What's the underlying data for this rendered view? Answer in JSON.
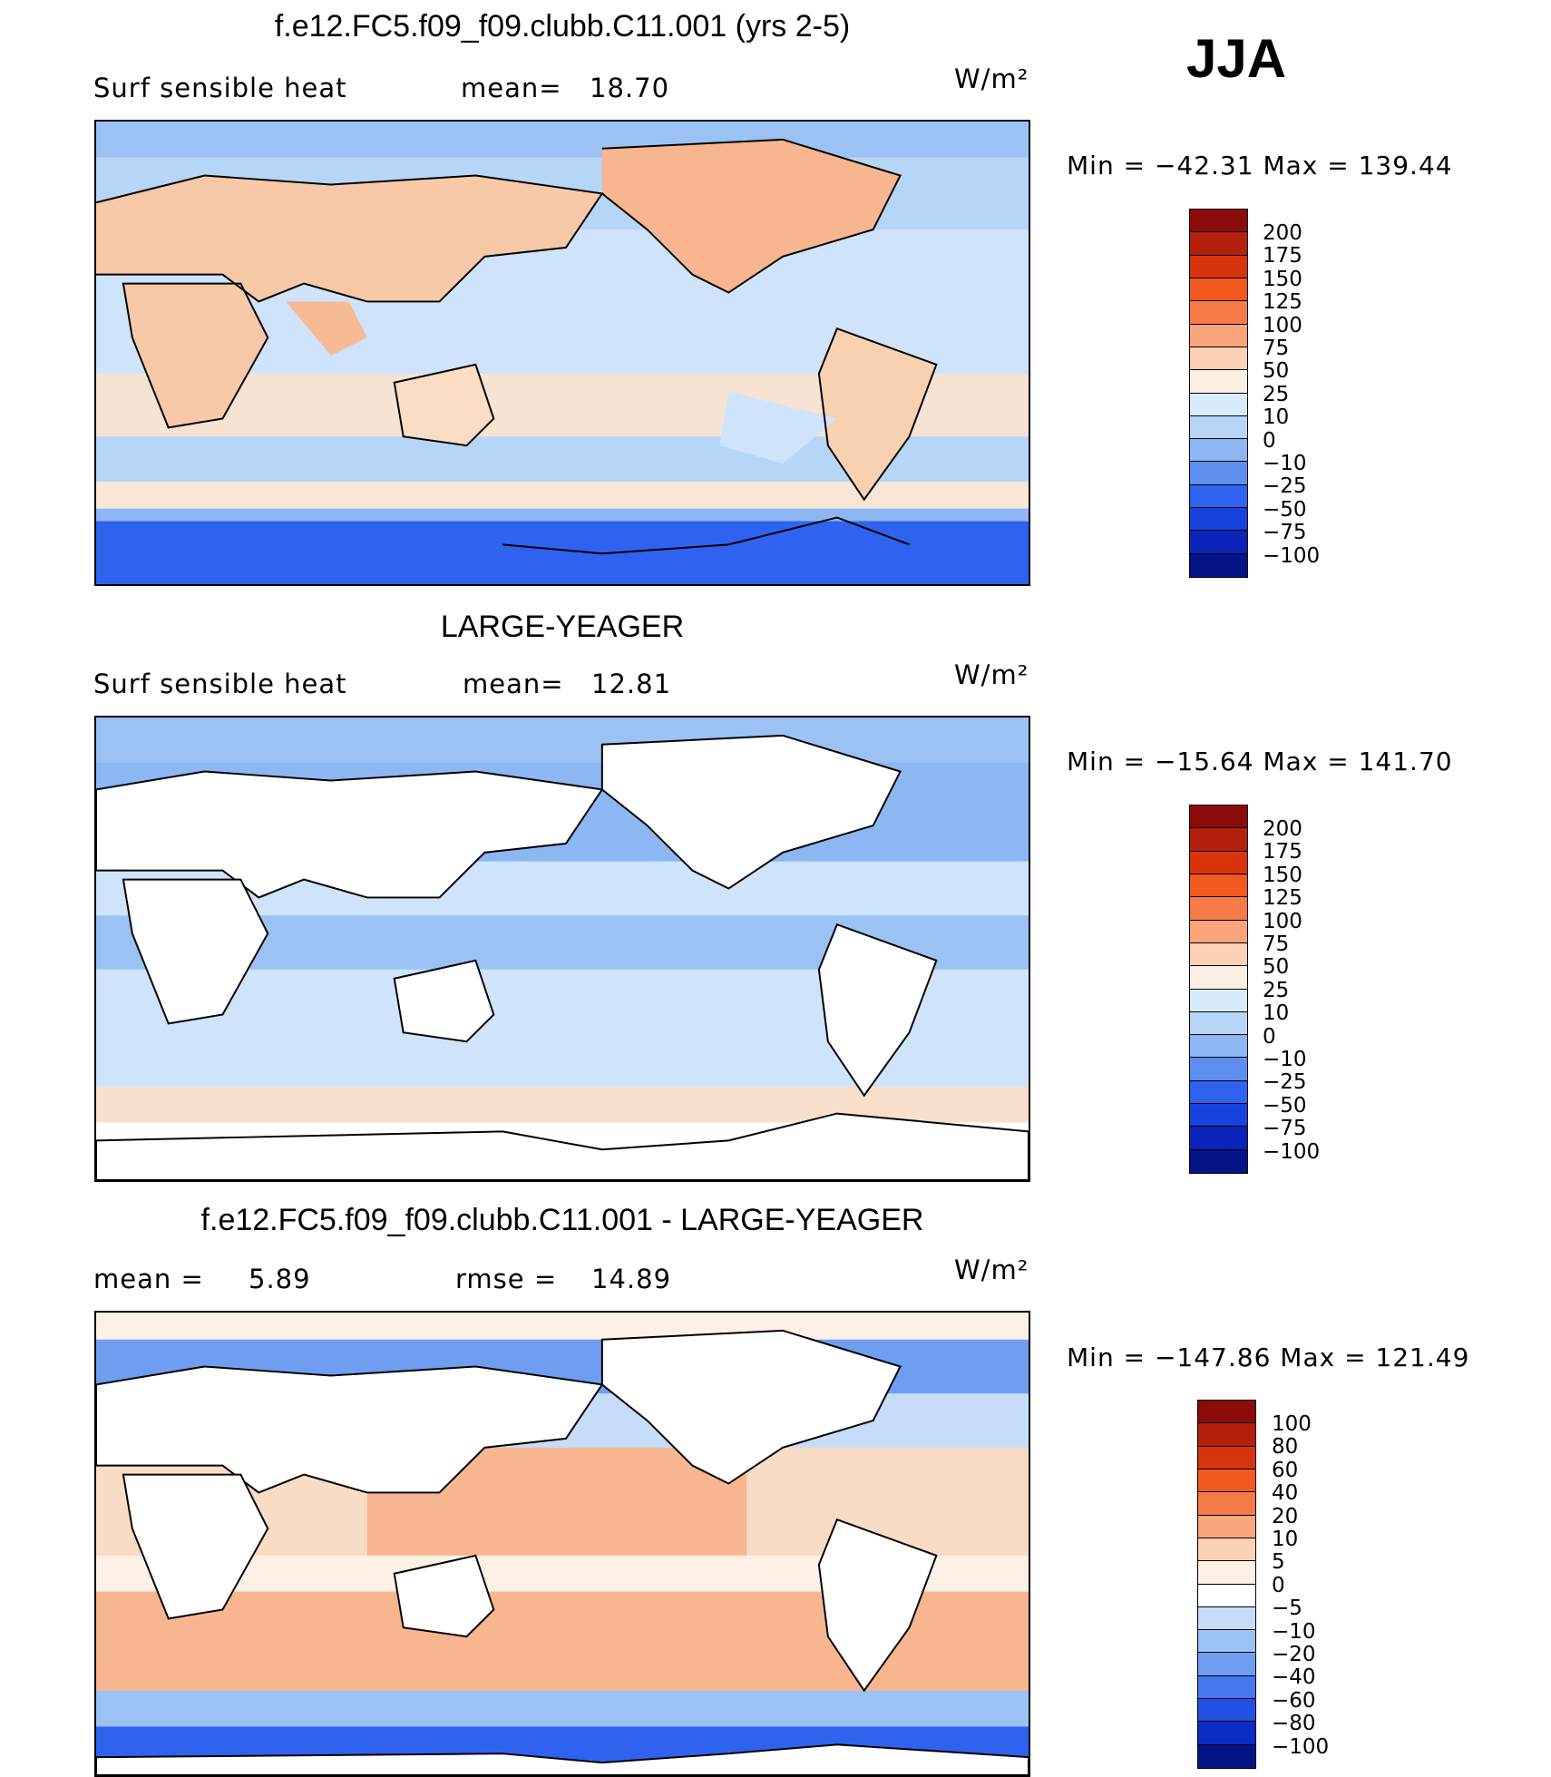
{
  "figure": {
    "season": "JJA",
    "colors": {
      "coastline": "#000000",
      "land_blank": "#ffffff"
    }
  },
  "panels": [
    {
      "title": "f.e12.FC5.f09_f09.clubb.C11.001 (yrs 2-5)",
      "left_label": "Surf  sensible  heat",
      "stat_label": "mean=",
      "stat_value": "18.70",
      "units": "W/m²",
      "min_max": "Min  =  −42.31  Max  =  139.44",
      "colorbar_levels": [
        "200",
        "175",
        "150",
        "125",
        "100",
        "75",
        "50",
        "25",
        "10",
        "0",
        "−10",
        "−25",
        "−50",
        "−75",
        "−100"
      ],
      "colorbar_colors": [
        "#8b0a0a",
        "#b3200c",
        "#d8350f",
        "#f2591e",
        "#f77b47",
        "#fba57c",
        "#fdd2b4",
        "#f9efe3",
        "#d9ebfb",
        "#b7d6f7",
        "#8cb7f2",
        "#5e8ff0",
        "#2f63ef",
        "#1742dc",
        "#0a24b9",
        "#041488"
      ]
    },
    {
      "title": "LARGE-YEAGER",
      "left_label": "Surf  sensible  heat",
      "stat_label": "mean=",
      "stat_value": "12.81",
      "units": "W/m²",
      "min_max": "Min  =  −15.64  Max  =  141.70",
      "colorbar_levels": [
        "200",
        "175",
        "150",
        "125",
        "100",
        "75",
        "50",
        "25",
        "10",
        "0",
        "−10",
        "−25",
        "−50",
        "−75",
        "−100"
      ],
      "colorbar_colors": [
        "#8b0a0a",
        "#b3200c",
        "#d8350f",
        "#f2591e",
        "#f77b47",
        "#fba57c",
        "#fdd2b4",
        "#f9efe3",
        "#d9ebfb",
        "#b7d6f7",
        "#8cb7f2",
        "#5e8ff0",
        "#2f63ef",
        "#1742dc",
        "#0a24b9",
        "#041488"
      ]
    },
    {
      "title": "f.e12.FC5.f09_f09.clubb.C11.001 - LARGE-YEAGER",
      "left_label": "mean  =",
      "left_value": "5.89",
      "stat_label": "rmse  =",
      "stat_value": "14.89",
      "units": "W/m²",
      "min_max": "Min  =  −147.86  Max  =  121.49",
      "colorbar_levels": [
        "100",
        "80",
        "60",
        "40",
        "20",
        "10",
        "5",
        "0",
        "−5",
        "−10",
        "−20",
        "−40",
        "−60",
        "−80",
        "−100"
      ],
      "colorbar_colors": [
        "#8b0a0a",
        "#b3200c",
        "#d8350f",
        "#f2591e",
        "#f77b47",
        "#fba57c",
        "#fdd2b4",
        "#fdf0e4",
        "#ffffff",
        "#c7dcf9",
        "#9cc1f4",
        "#6f9ef0",
        "#4778ee",
        "#2350e5",
        "#0b2cc4",
        "#041488"
      ]
    }
  ]
}
